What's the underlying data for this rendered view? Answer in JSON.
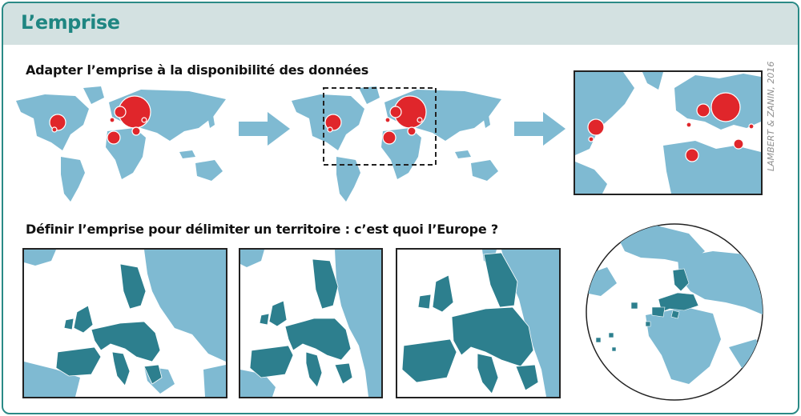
{
  "header": {
    "title": "L’emprise"
  },
  "section1": {
    "heading": "Adapter l’emprise à la disponibilité des données"
  },
  "section2": {
    "heading": "Définir l’emprise pour délimiter un territoire : c’est quoi l’Europe ?"
  },
  "credit": "LAMBERT & ZANIN, 2016",
  "colors": {
    "accent": "#1f8682",
    "header_bg": "#d3e1e1",
    "land": "#7fbad2",
    "eu": "#2d7f8e",
    "circle": "#e0262b"
  }
}
